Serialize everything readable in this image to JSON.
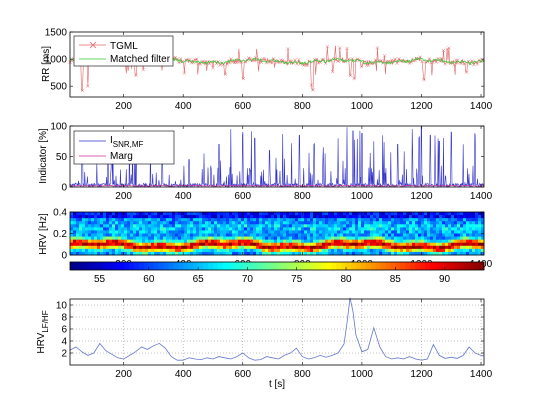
{
  "chart_data": [
    {
      "type": "line",
      "ylabel": "RR [ms]",
      "xlim": [
        20,
        1410
      ],
      "ylim": [
        300,
        1500
      ],
      "xticks": [
        200,
        400,
        600,
        800,
        1000,
        1200,
        1400
      ],
      "yticks": [
        500,
        1000,
        1500
      ],
      "grid": false,
      "legend": "top-left",
      "series": [
        {
          "name": "TGML",
          "color": "#e06666",
          "marker": "x"
        },
        {
          "name": "Matched filter",
          "color": "#33cc33"
        }
      ],
      "baseline": 960,
      "dips": [
        [
          60,
          420
        ],
        [
          80,
          500
        ],
        [
          215,
          780
        ],
        [
          240,
          700
        ],
        [
          500,
          840
        ],
        [
          540,
          720
        ],
        [
          600,
          640
        ],
        [
          830,
          520
        ],
        [
          835,
          430
        ],
        [
          960,
          700
        ],
        [
          975,
          640
        ],
        [
          1000,
          860
        ],
        [
          1210,
          620
        ],
        [
          1235,
          700
        ],
        [
          1350,
          760
        ]
      ]
    },
    {
      "type": "line",
      "ylabel": "Indicator [%]",
      "xlim": [
        20,
        1410
      ],
      "ylim": [
        0,
        100
      ],
      "xticks": [
        200,
        400,
        600,
        800,
        1000,
        1200,
        1400
      ],
      "yticks": [
        0,
        50,
        100
      ],
      "grid": false,
      "legend": "top-left",
      "series": [
        {
          "name": "I",
          "sub": "SNR,MF",
          "color": "#3333cc"
        },
        {
          "name": "Marg",
          "color": "#cc3399"
        }
      ],
      "peaks": [
        [
          60,
          55
        ],
        [
          110,
          40
        ],
        [
          160,
          60
        ],
        [
          230,
          75
        ],
        [
          290,
          50
        ],
        [
          330,
          65
        ],
        [
          420,
          45
        ],
        [
          470,
          55
        ],
        [
          520,
          70
        ],
        [
          560,
          95
        ],
        [
          600,
          90
        ],
        [
          640,
          80
        ],
        [
          690,
          60
        ],
        [
          740,
          75
        ],
        [
          790,
          85
        ],
        [
          840,
          70
        ],
        [
          870,
          65
        ],
        [
          920,
          80
        ],
        [
          950,
          98
        ],
        [
          970,
          92
        ],
        [
          1000,
          88
        ],
        [
          1040,
          75
        ],
        [
          1070,
          85
        ],
        [
          1120,
          70
        ],
        [
          1170,
          95
        ],
        [
          1200,
          100
        ],
        [
          1230,
          85
        ],
        [
          1260,
          75
        ],
        [
          1300,
          90
        ],
        [
          1340,
          70
        ],
        [
          1380,
          85
        ]
      ]
    },
    {
      "type": "heatmap",
      "ylabel": "HRV [Hz]",
      "xlim": [
        20,
        1410
      ],
      "ylim": [
        0,
        0.4
      ],
      "xticks": [
        200,
        400,
        600,
        800,
        1000,
        1200,
        1400
      ],
      "yticks": [
        0,
        0.2,
        0.4
      ],
      "colorbar": {
        "range": [
          52,
          94
        ],
        "ticks": [
          55,
          60,
          65,
          70,
          75,
          80,
          85,
          90
        ]
      }
    },
    {
      "type": "line",
      "ylabel": "HRV",
      "ylabel_sub": "LF/HF",
      "xlabel": "t [s]",
      "xlim": [
        20,
        1410
      ],
      "ylim": [
        0,
        11
      ],
      "xticks": [
        200,
        400,
        600,
        800,
        1000,
        1200,
        1400
      ],
      "yticks": [
        2,
        4,
        6,
        8,
        10
      ],
      "grid": true,
      "series": [
        {
          "color": "#6677cc",
          "x": [
            20,
            40,
            60,
            80,
            100,
            120,
            140,
            160,
            180,
            200,
            220,
            240,
            260,
            280,
            300,
            320,
            340,
            360,
            380,
            400,
            420,
            440,
            460,
            480,
            500,
            520,
            540,
            560,
            580,
            600,
            620,
            640,
            660,
            680,
            700,
            720,
            740,
            760,
            780,
            800,
            820,
            840,
            860,
            880,
            900,
            920,
            940,
            950,
            960,
            970,
            980,
            1000,
            1020,
            1040,
            1060,
            1080,
            1100,
            1120,
            1140,
            1160,
            1180,
            1200,
            1220,
            1240,
            1260,
            1280,
            1300,
            1320,
            1340,
            1360,
            1380,
            1400,
            1410
          ],
          "y": [
            2.5,
            3.0,
            2.2,
            1.6,
            2.0,
            3.6,
            2.4,
            1.8,
            1.2,
            1.0,
            1.6,
            2.2,
            3.0,
            2.6,
            3.2,
            3.6,
            2.8,
            1.4,
            0.8,
            0.8,
            1.2,
            1.0,
            0.9,
            1.2,
            1.0,
            1.4,
            1.2,
            1.0,
            1.4,
            2.0,
            1.2,
            0.8,
            0.9,
            1.4,
            1.2,
            1.0,
            1.6,
            2.0,
            2.8,
            1.4,
            1.0,
            1.2,
            1.6,
            1.3,
            1.6,
            2.0,
            3.5,
            7.0,
            11.2,
            9.0,
            5.0,
            2.2,
            2.6,
            6.2,
            3.0,
            1.4,
            1.0,
            1.2,
            1.0,
            1.4,
            1.0,
            0.8,
            1.0,
            3.4,
            1.6,
            1.1,
            1.3,
            1.1,
            1.6,
            3.0,
            2.0,
            1.6,
            1.5
          ]
        }
      ]
    }
  ]
}
